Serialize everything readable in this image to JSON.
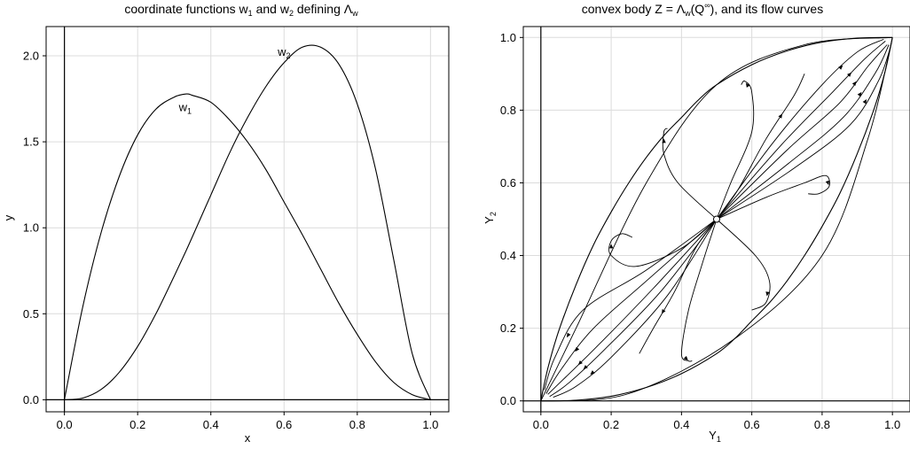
{
  "chart_data": [
    {
      "type": "line",
      "title": {
        "pre": "coordinate functions  w",
        "s1": "1",
        "mid": "  and  w",
        "s2": "2",
        "post": "  defining  Λ",
        "s3": "w"
      },
      "xlabel": "x",
      "ylabel": "y",
      "xlim": [
        -0.05,
        1.05
      ],
      "ylim": [
        -0.07,
        2.17
      ],
      "x_ticks": [
        "0.0",
        "0.2",
        "0.4",
        "0.6",
        "0.8",
        "1.0"
      ],
      "y_ticks": [
        "0.0",
        "0.5",
        "1.0",
        "1.5",
        "2.0"
      ],
      "grid": true,
      "x": [
        0.0,
        0.05,
        0.1,
        0.15,
        0.2,
        0.25,
        0.3,
        0.333,
        0.35,
        0.4,
        0.45,
        0.5,
        0.55,
        0.6,
        0.65,
        0.7,
        0.75,
        0.8,
        0.85,
        0.9,
        0.95,
        1.0
      ],
      "series": [
        {
          "name": "w",
          "name_sub": "1",
          "values": [
            0.0,
            0.54,
            0.97,
            1.3,
            1.54,
            1.69,
            1.76,
            1.778,
            1.77,
            1.73,
            1.63,
            1.5,
            1.34,
            1.15,
            0.96,
            0.76,
            0.56,
            0.38,
            0.22,
            0.1,
            0.03,
            0.0
          ],
          "label_at": [
            0.33,
            1.7
          ]
        },
        {
          "name": "w",
          "name_sub": "2",
          "values": [
            0.0,
            0.01,
            0.06,
            0.16,
            0.31,
            0.5,
            0.72,
            0.87,
            0.95,
            1.19,
            1.43,
            1.64,
            1.82,
            1.96,
            2.05,
            2.05,
            1.95,
            1.72,
            1.34,
            0.81,
            0.27,
            0.0
          ],
          "label_at": [
            0.6,
            2.02
          ]
        }
      ]
    },
    {
      "type": "line",
      "title": {
        "pre": "convex body  Z = Λ",
        "s1": "w",
        "mid": "(Q",
        "sup": "∞",
        "post": "), and its flow curves"
      },
      "xlabel": "Y",
      "xlabel_sub": "1",
      "ylabel": "Y",
      "ylabel_sub": "2",
      "xlim": [
        -0.05,
        1.05
      ],
      "ylim": [
        -0.03,
        1.03
      ],
      "x_ticks": [
        "0.0",
        "0.2",
        "0.4",
        "0.6",
        "0.8",
        "1.0"
      ],
      "y_ticks": [
        "0.0",
        "0.2",
        "0.4",
        "0.6",
        "0.8",
        "1.0"
      ],
      "grid": true,
      "center_point": [
        0.5,
        0.5
      ],
      "boundary": {
        "upper": [
          [
            0.0,
            0.0
          ],
          [
            0.02,
            0.09
          ],
          [
            0.05,
            0.19
          ],
          [
            0.1,
            0.32
          ],
          [
            0.15,
            0.43
          ],
          [
            0.2,
            0.52
          ],
          [
            0.25,
            0.6
          ],
          [
            0.3,
            0.67
          ],
          [
            0.35,
            0.73
          ],
          [
            0.4,
            0.78
          ],
          [
            0.45,
            0.83
          ],
          [
            0.5,
            0.87
          ],
          [
            0.6,
            0.925
          ],
          [
            0.7,
            0.963
          ],
          [
            0.8,
            0.987
          ],
          [
            0.9,
            0.998
          ],
          [
            1.0,
            1.0
          ]
        ],
        "lower": [
          [
            0.0,
            0.0
          ],
          [
            0.1,
            0.002
          ],
          [
            0.2,
            0.013
          ],
          [
            0.3,
            0.037
          ],
          [
            0.4,
            0.075
          ],
          [
            0.5,
            0.13
          ],
          [
            0.55,
            0.17
          ],
          [
            0.6,
            0.22
          ],
          [
            0.65,
            0.27
          ],
          [
            0.7,
            0.33
          ],
          [
            0.75,
            0.4
          ],
          [
            0.8,
            0.48
          ],
          [
            0.85,
            0.57
          ],
          [
            0.9,
            0.68
          ],
          [
            0.95,
            0.81
          ],
          [
            0.98,
            0.91
          ],
          [
            1.0,
            1.0
          ]
        ]
      },
      "inner_curves": [
        [
          [
            0.0,
            0.0
          ],
          [
            0.1,
            0.2
          ],
          [
            0.3,
            0.6
          ],
          [
            0.5,
            0.87
          ],
          [
            0.75,
            0.98
          ],
          [
            1.0,
            1.0
          ]
        ],
        [
          [
            0.0,
            0.0
          ],
          [
            0.25,
            0.02
          ],
          [
            0.55,
            0.17
          ],
          [
            0.8,
            0.4
          ],
          [
            0.93,
            0.72
          ],
          [
            1.0,
            1.0
          ]
        ]
      ],
      "flow_curves": [
        [
          [
            0.5,
            0.5
          ],
          [
            0.3,
            0.33
          ],
          [
            0.15,
            0.2
          ],
          [
            0.06,
            0.09
          ],
          [
            0.015,
            0.02
          ]
        ],
        [
          [
            0.5,
            0.5
          ],
          [
            0.32,
            0.31
          ],
          [
            0.16,
            0.15
          ],
          [
            0.07,
            0.065
          ],
          [
            0.02,
            0.018
          ]
        ],
        [
          [
            0.5,
            0.5
          ],
          [
            0.34,
            0.3
          ],
          [
            0.18,
            0.14
          ],
          [
            0.08,
            0.05
          ],
          [
            0.025,
            0.012
          ]
        ],
        [
          [
            0.5,
            0.5
          ],
          [
            0.36,
            0.29
          ],
          [
            0.2,
            0.12
          ],
          [
            0.1,
            0.04
          ],
          [
            0.035,
            0.01
          ]
        ],
        [
          [
            0.5,
            0.5
          ],
          [
            0.3,
            0.36
          ],
          [
            0.12,
            0.25
          ],
          [
            0.04,
            0.12
          ],
          [
            0.01,
            0.03
          ]
        ],
        [
          [
            0.5,
            0.5
          ],
          [
            0.7,
            0.69
          ],
          [
            0.85,
            0.82
          ],
          [
            0.93,
            0.92
          ],
          [
            0.985,
            0.98
          ]
        ],
        [
          [
            0.5,
            0.5
          ],
          [
            0.68,
            0.7
          ],
          [
            0.83,
            0.85
          ],
          [
            0.92,
            0.94
          ],
          [
            0.98,
            0.99
          ]
        ],
        [
          [
            0.5,
            0.5
          ],
          [
            0.66,
            0.71
          ],
          [
            0.8,
            0.87
          ],
          [
            0.9,
            0.96
          ],
          [
            0.975,
            0.995
          ]
        ],
        [
          [
            0.5,
            0.5
          ],
          [
            0.7,
            0.65
          ],
          [
            0.86,
            0.78
          ],
          [
            0.95,
            0.9
          ],
          [
            0.99,
            0.98
          ]
        ],
        [
          [
            0.5,
            0.5
          ],
          [
            0.72,
            0.64
          ],
          [
            0.88,
            0.76
          ],
          [
            0.96,
            0.88
          ],
          [
            0.995,
            0.975
          ]
        ],
        [
          [
            0.5,
            0.5
          ],
          [
            0.54,
            0.6
          ],
          [
            0.6,
            0.74
          ],
          [
            0.6,
            0.85
          ],
          [
            0.58,
            0.88
          ],
          [
            0.57,
            0.87
          ]
        ],
        [
          [
            0.5,
            0.5
          ],
          [
            0.39,
            0.6
          ],
          [
            0.35,
            0.68
          ],
          [
            0.35,
            0.74
          ],
          [
            0.36,
            0.75
          ]
        ],
        [
          [
            0.5,
            0.5
          ],
          [
            0.4,
            0.42
          ],
          [
            0.27,
            0.37
          ],
          [
            0.2,
            0.4
          ],
          [
            0.2,
            0.44
          ],
          [
            0.23,
            0.46
          ],
          [
            0.26,
            0.45
          ]
        ],
        [
          [
            0.5,
            0.5
          ],
          [
            0.64,
            0.56
          ],
          [
            0.75,
            0.6
          ],
          [
            0.81,
            0.62
          ],
          [
            0.82,
            0.59
          ],
          [
            0.79,
            0.57
          ],
          [
            0.76,
            0.57
          ]
        ],
        [
          [
            0.5,
            0.5
          ],
          [
            0.61,
            0.4
          ],
          [
            0.65,
            0.33
          ],
          [
            0.64,
            0.27
          ],
          [
            0.6,
            0.25
          ]
        ],
        [
          [
            0.5,
            0.5
          ],
          [
            0.46,
            0.38
          ],
          [
            0.42,
            0.25
          ],
          [
            0.4,
            0.13
          ],
          [
            0.42,
            0.11
          ],
          [
            0.43,
            0.11
          ]
        ],
        [
          [
            0.5,
            0.5
          ],
          [
            0.44,
            0.42
          ],
          [
            0.38,
            0.3
          ],
          [
            0.32,
            0.2
          ],
          [
            0.28,
            0.13
          ]
        ],
        [
          [
            0.5,
            0.5
          ],
          [
            0.56,
            0.58
          ],
          [
            0.64,
            0.72
          ],
          [
            0.72,
            0.84
          ],
          [
            0.75,
            0.9
          ]
        ]
      ]
    }
  ]
}
